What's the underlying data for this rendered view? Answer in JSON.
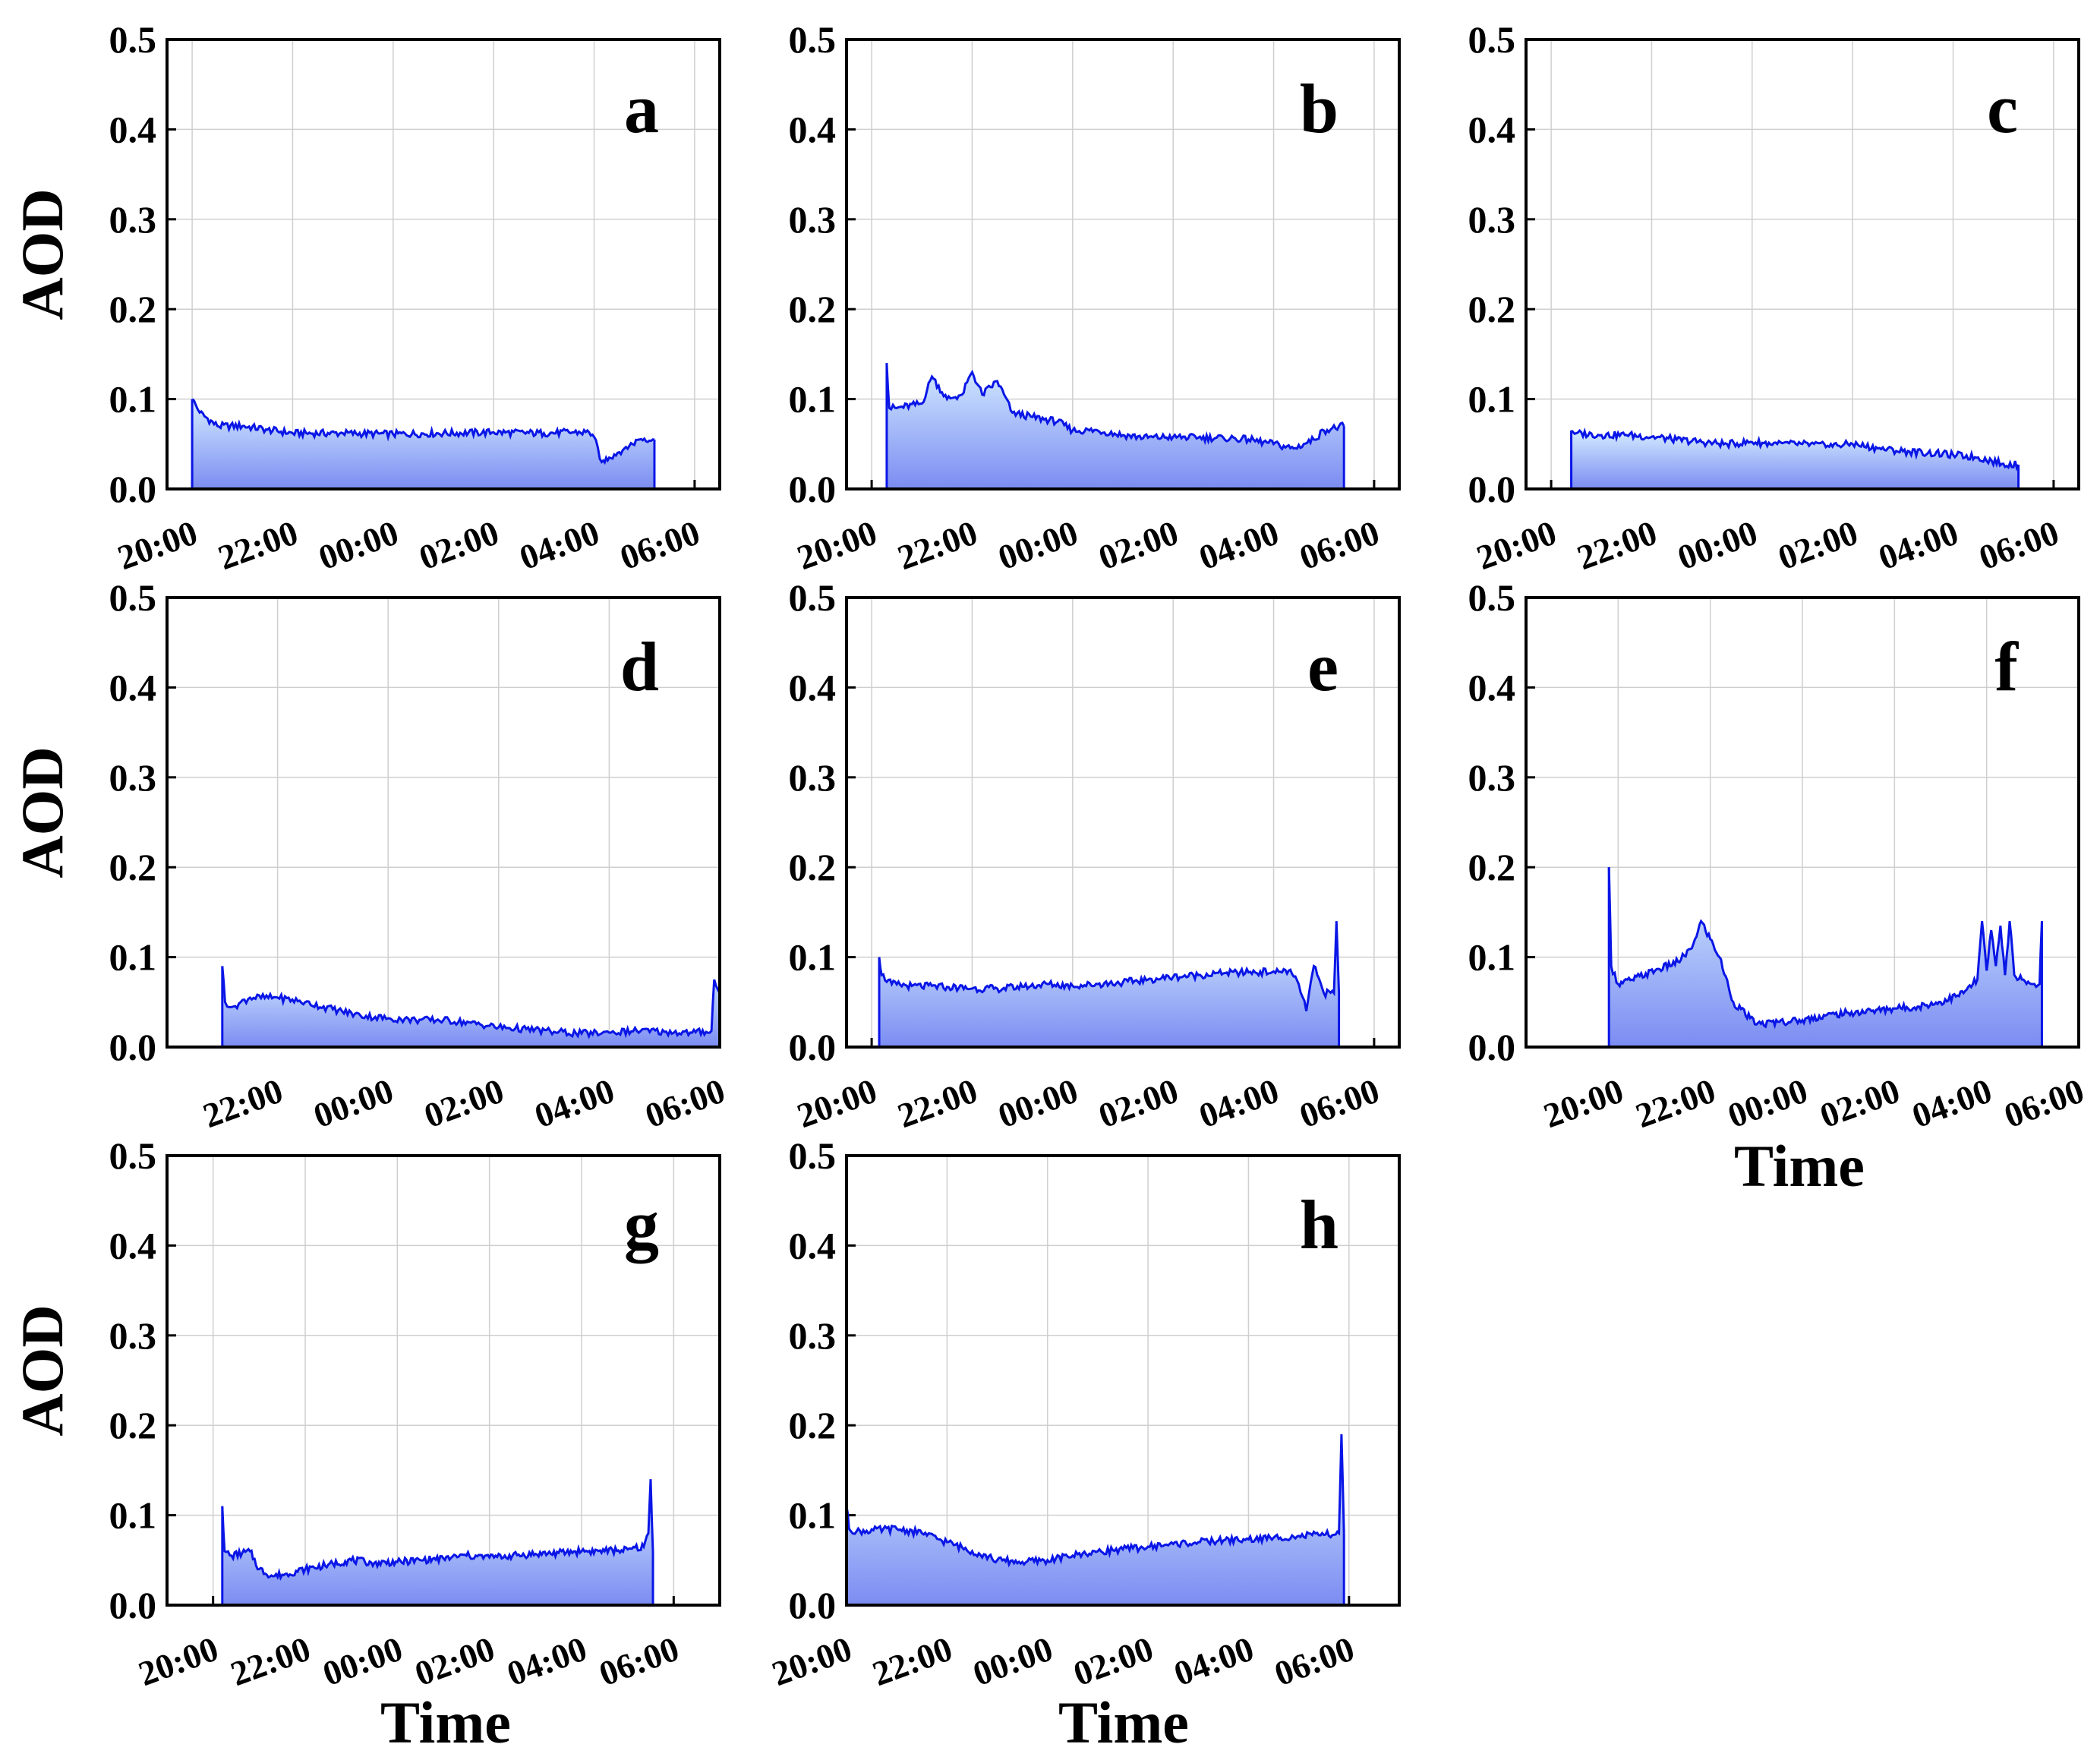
{
  "figure": {
    "y_axis_title": "AOD",
    "x_axis_title": "Time",
    "colors": {
      "line": "#0a16e6",
      "fill_top": "#d4ecff",
      "fill_bottom": "#7b8cf2",
      "grid": "#cfcfcf"
    }
  },
  "chart_data": [
    {
      "panel": "a",
      "type": "area",
      "ylabel": "AOD",
      "xlabel": "",
      "ylim": [
        0,
        0.5
      ],
      "yticks": [
        "0.0",
        "0.1",
        "0.2",
        "0.3",
        "0.4",
        "0.5"
      ],
      "xticks": [
        "20:00",
        "22:00",
        "00:00",
        "02:00",
        "04:00",
        "06:00"
      ],
      "x_start_hour": 20.0,
      "x_end_hour": 29.2,
      "x_hours": [
        20.0,
        20.15,
        20.5,
        21.0,
        21.5,
        22.0,
        23.0,
        24.0,
        25.0,
        26.0,
        27.0,
        27.5,
        27.9,
        28.0,
        28.15,
        28.3,
        28.6,
        28.9,
        29.0,
        29.2
      ],
      "values": [
        0.1,
        0.085,
        0.07,
        0.07,
        0.066,
        0.062,
        0.062,
        0.061,
        0.062,
        0.063,
        0.062,
        0.063,
        0.063,
        0.058,
        0.03,
        0.035,
        0.045,
        0.055,
        0.056,
        0.055
      ]
    },
    {
      "panel": "b",
      "type": "area",
      "ylabel": "",
      "xlabel": "",
      "ylim": [
        0,
        0.5
      ],
      "yticks": [
        "0.0",
        "0.1",
        "0.2",
        "0.3",
        "0.4",
        "0.5"
      ],
      "xticks": [
        "20:00",
        "22:00",
        "00:00",
        "02:00",
        "04:00",
        "06:00"
      ],
      "x_start_hour": 20.3,
      "x_end_hour": 29.4,
      "x_hours": [
        20.3,
        20.35,
        20.5,
        21.0,
        21.2,
        21.5,
        21.8,
        22.0,
        22.2,
        22.5,
        22.8,
        23.2,
        23.7,
        24.0,
        24.5,
        25.0,
        25.5,
        26.0,
        26.5,
        27.0,
        27.5,
        28.0,
        28.4,
        28.8,
        29.0,
        29.4
      ],
      "values": [
        0.14,
        0.09,
        0.09,
        0.095,
        0.125,
        0.1,
        0.105,
        0.13,
        0.105,
        0.12,
        0.085,
        0.08,
        0.075,
        0.065,
        0.065,
        0.06,
        0.057,
        0.058,
        0.057,
        0.057,
        0.055,
        0.05,
        0.045,
        0.055,
        0.065,
        0.07
      ]
    },
    {
      "panel": "c",
      "type": "area",
      "ylabel": "",
      "xlabel": "",
      "ylim": [
        0,
        0.5
      ],
      "yticks": [
        "0.0",
        "0.1",
        "0.2",
        "0.3",
        "0.4",
        "0.5"
      ],
      "xticks": [
        "20:00",
        "22:00",
        "00:00",
        "02:00",
        "04:00",
        "06:00"
      ],
      "x_start_hour": 20.4,
      "x_end_hour": 29.3,
      "x_hours": [
        20.4,
        20.5,
        21.0,
        21.5,
        22.0,
        22.5,
        23.0,
        23.5,
        24.0,
        24.5,
        25.0,
        25.5,
        26.0,
        26.5,
        27.0,
        27.5,
        28.0,
        28.5,
        29.0,
        29.3
      ],
      "values": [
        0.065,
        0.062,
        0.06,
        0.06,
        0.058,
        0.055,
        0.052,
        0.05,
        0.052,
        0.05,
        0.05,
        0.048,
        0.05,
        0.045,
        0.042,
        0.04,
        0.038,
        0.035,
        0.028,
        0.027
      ]
    },
    {
      "panel": "d",
      "type": "area",
      "ylabel": "AOD",
      "xlabel": "",
      "ylim": [
        0,
        0.5
      ],
      "yticks": [
        "0.0",
        "0.1",
        "0.2",
        "0.3",
        "0.4",
        "0.5"
      ],
      "xticks": [
        "22:00",
        "00:00",
        "02:00",
        "04:00",
        "06:00"
      ],
      "x_start_hour": 21.0,
      "x_end_hour": 30.0,
      "x_min_hour": 20.0,
      "x_max_hour": 30.0,
      "x_hours": [
        21.0,
        21.05,
        21.2,
        21.5,
        22.0,
        22.5,
        23.0,
        23.5,
        24.0,
        24.5,
        25.0,
        25.5,
        26.0,
        26.5,
        27.0,
        27.5,
        28.0,
        28.5,
        29.0,
        29.5,
        29.85,
        29.9,
        30.0
      ],
      "values": [
        0.09,
        0.05,
        0.045,
        0.055,
        0.055,
        0.05,
        0.042,
        0.035,
        0.032,
        0.03,
        0.03,
        0.027,
        0.022,
        0.02,
        0.017,
        0.015,
        0.016,
        0.018,
        0.017,
        0.016,
        0.018,
        0.075,
        0.06
      ]
    },
    {
      "panel": "e",
      "type": "area",
      "ylabel": "",
      "xlabel": "",
      "ylim": [
        0,
        0.5
      ],
      "yticks": [
        "0.0",
        "0.1",
        "0.2",
        "0.3",
        "0.4",
        "0.5"
      ],
      "xticks": [
        "20:00",
        "22:00",
        "00:00",
        "02:00",
        "04:00",
        "06:00"
      ],
      "x_start_hour": 20.15,
      "x_end_hour": 29.3,
      "x_hours": [
        20.15,
        20.2,
        20.4,
        20.8,
        21.5,
        22.0,
        22.5,
        23.0,
        23.5,
        24.0,
        24.5,
        25.0,
        25.5,
        26.0,
        26.5,
        27.0,
        27.5,
        28.0,
        28.3,
        28.5,
        28.65,
        28.8,
        29.0,
        29.2,
        29.25,
        29.3
      ],
      "values": [
        0.1,
        0.08,
        0.07,
        0.068,
        0.067,
        0.065,
        0.065,
        0.067,
        0.07,
        0.068,
        0.07,
        0.072,
        0.075,
        0.078,
        0.08,
        0.082,
        0.083,
        0.084,
        0.085,
        0.07,
        0.04,
        0.09,
        0.06,
        0.06,
        0.14,
        0.06
      ]
    },
    {
      "panel": "f",
      "type": "area",
      "ylabel": "",
      "xlabel": "Time",
      "ylim": [
        0,
        0.5
      ],
      "yticks": [
        "0.0",
        "0.1",
        "0.2",
        "0.3",
        "0.4",
        "0.5"
      ],
      "xticks": [
        "20:00",
        "22:00",
        "00:00",
        "02:00",
        "04:00",
        "06:00"
      ],
      "x_start_hour": 19.8,
      "x_end_hour": 29.2,
      "x_min_hour": 18.0,
      "x_max_hour": 30.0,
      "x_hours": [
        19.8,
        19.85,
        20.0,
        20.3,
        20.8,
        21.3,
        21.6,
        21.8,
        22.0,
        22.2,
        22.5,
        23.0,
        23.5,
        24.0,
        24.5,
        25.0,
        25.5,
        26.0,
        26.5,
        27.0,
        27.5,
        27.8,
        27.9,
        28.0,
        28.1,
        28.2,
        28.3,
        28.4,
        28.5,
        28.6,
        28.8,
        29.0,
        29.15,
        29.2
      ],
      "values": [
        0.2,
        0.09,
        0.07,
        0.075,
        0.085,
        0.095,
        0.11,
        0.14,
        0.12,
        0.1,
        0.05,
        0.025,
        0.028,
        0.03,
        0.035,
        0.038,
        0.04,
        0.043,
        0.045,
        0.05,
        0.06,
        0.075,
        0.14,
        0.085,
        0.13,
        0.09,
        0.135,
        0.08,
        0.14,
        0.08,
        0.075,
        0.07,
        0.07,
        0.14
      ]
    },
    {
      "panel": "g",
      "type": "area",
      "ylabel": "AOD",
      "xlabel": "Time",
      "ylim": [
        0,
        0.5
      ],
      "yticks": [
        "0.0",
        "0.1",
        "0.2",
        "0.3",
        "0.4",
        "0.5"
      ],
      "xticks": [
        "20:00",
        "22:00",
        "00:00",
        "02:00",
        "04:00",
        "06:00"
      ],
      "x_start_hour": 20.2,
      "x_end_hour": 29.55,
      "x_min_hour": 19.0,
      "x_max_hour": 31.0,
      "x_hours": [
        20.2,
        20.25,
        20.4,
        20.8,
        21.0,
        21.3,
        21.6,
        22.0,
        22.5,
        23.0,
        23.5,
        24.0,
        24.5,
        25.0,
        25.5,
        26.0,
        26.5,
        27.0,
        27.5,
        28.0,
        28.5,
        29.0,
        29.35,
        29.45,
        29.5,
        29.55
      ],
      "values": [
        0.11,
        0.06,
        0.055,
        0.06,
        0.04,
        0.032,
        0.035,
        0.04,
        0.045,
        0.05,
        0.047,
        0.048,
        0.05,
        0.052,
        0.055,
        0.053,
        0.055,
        0.057,
        0.058,
        0.06,
        0.06,
        0.062,
        0.065,
        0.08,
        0.14,
        0.06
      ]
    },
    {
      "panel": "h",
      "type": "area",
      "ylabel": "",
      "xlabel": "Time",
      "ylim": [
        0,
        0.5
      ],
      "yticks": [
        "0.0",
        "0.1",
        "0.2",
        "0.3",
        "0.4",
        "0.5"
      ],
      "xticks": [
        "20:00",
        "22:00",
        "00:00",
        "02:00",
        "04:00",
        "06:00"
      ],
      "x_start_hour": 20.0,
      "x_end_hour": 29.9,
      "x_min_hour": 20.0,
      "x_max_hour": 31.0,
      "x_hours": [
        20.0,
        20.05,
        20.2,
        21.0,
        21.5,
        22.0,
        22.5,
        23.0,
        23.5,
        24.0,
        24.5,
        25.0,
        25.5,
        26.0,
        26.5,
        27.0,
        27.5,
        28.0,
        28.5,
        29.0,
        29.5,
        29.8,
        29.85,
        29.9
      ],
      "values": [
        0.11,
        0.085,
        0.082,
        0.085,
        0.08,
        0.07,
        0.06,
        0.05,
        0.048,
        0.05,
        0.055,
        0.06,
        0.062,
        0.065,
        0.068,
        0.07,
        0.072,
        0.073,
        0.075,
        0.077,
        0.078,
        0.08,
        0.19,
        0.08
      ]
    }
  ]
}
